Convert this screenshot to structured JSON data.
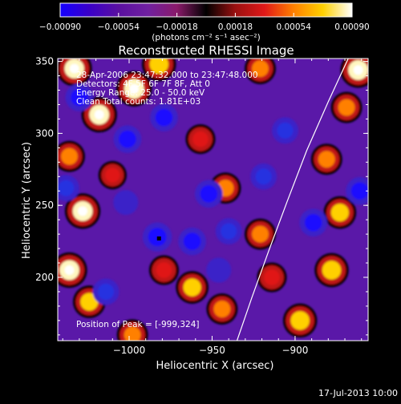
{
  "chart_data": {
    "type": "heatmap",
    "title": "Reconstructed RHESSI Image",
    "xlabel": "Heliocentric X (arcsec)",
    "ylabel": "Heliocentric Y (arcsec)",
    "xlim": [
      -1043,
      -856
    ],
    "ylim": [
      156,
      352
    ],
    "x_ticks": [
      {
        "value": -1000,
        "label": "−1000"
      },
      {
        "value": -950,
        "label": "−950"
      },
      {
        "value": -900,
        "label": "−900"
      }
    ],
    "y_ticks": [
      {
        "value": 200,
        "label": "200"
      },
      {
        "value": 250,
        "label": "250"
      },
      {
        "value": 300,
        "label": "300"
      },
      {
        "value": 350,
        "label": "350"
      }
    ],
    "colorbar": {
      "range": [
        -0.0009,
        0.0009
      ],
      "ticks": [
        {
          "value": -0.0009,
          "label": "−0.00090"
        },
        {
          "value": -0.00054,
          "label": "−0.00054"
        },
        {
          "value": -0.00018,
          "label": "−0.00018"
        },
        {
          "value": 0.00018,
          "label": "0.00018"
        },
        {
          "value": 0.00054,
          "label": "0.00054"
        },
        {
          "value": 0.0009,
          "label": "0.00090"
        }
      ],
      "units_label": "(photons cm⁻² s⁻¹ asec⁻²)",
      "colors": [
        "#1400ff",
        "#3a00c8",
        "#5a10a0",
        "#7020a0",
        "#8a1a6a",
        "#000000",
        "#9a1010",
        "#e01818",
        "#ff8000",
        "#ffd000",
        "#ffffff"
      ]
    },
    "annotations": [
      "28-Apr-2006 23:47:32.000 to 23:47:48.000",
      "Detectors: 4F 5F 6F 7F 8F, Att 0",
      "Energy Range: 25.0 - 50.0 keV",
      "Clean   Total counts: 1.81E+03"
    ],
    "peak_label": "Position of Peak = [-999,324]",
    "peak": {
      "x": -999,
      "y": 324
    },
    "marker": {
      "x": -982,
      "y": 227
    },
    "limb": [
      {
        "x": -935,
        "y": 156
      },
      {
        "x": -926,
        "y": 186
      },
      {
        "x": -916,
        "y": 218
      },
      {
        "x": -905,
        "y": 252
      },
      {
        "x": -893,
        "y": 288
      },
      {
        "x": -880,
        "y": 322
      },
      {
        "x": -868,
        "y": 352
      }
    ],
    "blobs": [
      {
        "x": -1033,
        "y": 345,
        "v": 0.00088
      },
      {
        "x": -1018,
        "y": 313,
        "v": 0.0009
      },
      {
        "x": -997,
        "y": 331,
        "v": 0.0009
      },
      {
        "x": -982,
        "y": 348,
        "v": 0.0008
      },
      {
        "x": -1036,
        "y": 284,
        "v": 0.0006
      },
      {
        "x": -1028,
        "y": 246,
        "v": 0.0009
      },
      {
        "x": -1036,
        "y": 205,
        "v": 0.0009
      },
      {
        "x": -1024,
        "y": 183,
        "v": 0.0007
      },
      {
        "x": -998,
        "y": 160,
        "v": 0.0006
      },
      {
        "x": -979,
        "y": 205,
        "v": 0.0005
      },
      {
        "x": -962,
        "y": 193,
        "v": 0.0007
      },
      {
        "x": -944,
        "y": 178,
        "v": 0.0006
      },
      {
        "x": -957,
        "y": 296,
        "v": 0.0005
      },
      {
        "x": -942,
        "y": 262,
        "v": 0.0006
      },
      {
        "x": -921,
        "y": 230,
        "v": 0.0006
      },
      {
        "x": -914,
        "y": 200,
        "v": 0.0005
      },
      {
        "x": -897,
        "y": 170,
        "v": 0.0008
      },
      {
        "x": -878,
        "y": 205,
        "v": 0.0008
      },
      {
        "x": -873,
        "y": 245,
        "v": 0.0007
      },
      {
        "x": -881,
        "y": 282,
        "v": 0.0006
      },
      {
        "x": -869,
        "y": 318,
        "v": 0.0006
      },
      {
        "x": -862,
        "y": 344,
        "v": 0.0009
      },
      {
        "x": -921,
        "y": 345,
        "v": 0.0006
      },
      {
        "x": -1010,
        "y": 271,
        "v": 0.0004
      },
      {
        "x": -1030,
        "y": 325,
        "v": -0.0007
      },
      {
        "x": -1001,
        "y": 296,
        "v": -0.0007
      },
      {
        "x": -979,
        "y": 311,
        "v": -0.0007
      },
      {
        "x": -983,
        "y": 228,
        "v": -0.0008
      },
      {
        "x": -962,
        "y": 225,
        "v": -0.0007
      },
      {
        "x": -952,
        "y": 258,
        "v": -0.0007
      },
      {
        "x": -940,
        "y": 232,
        "v": -0.0006
      },
      {
        "x": -919,
        "y": 270,
        "v": -0.0006
      },
      {
        "x": -906,
        "y": 302,
        "v": -0.0006
      },
      {
        "x": -889,
        "y": 238,
        "v": -0.0007
      },
      {
        "x": -861,
        "y": 260,
        "v": -0.0007
      },
      {
        "x": -1002,
        "y": 252,
        "v": -0.0005
      },
      {
        "x": -1038,
        "y": 262,
        "v": -0.0006
      },
      {
        "x": -1014,
        "y": 190,
        "v": -0.0006
      },
      {
        "x": -946,
        "y": 205,
        "v": -0.0005
      }
    ]
  },
  "footer": {
    "timestamp": "17-Jul-2013 10:00"
  }
}
